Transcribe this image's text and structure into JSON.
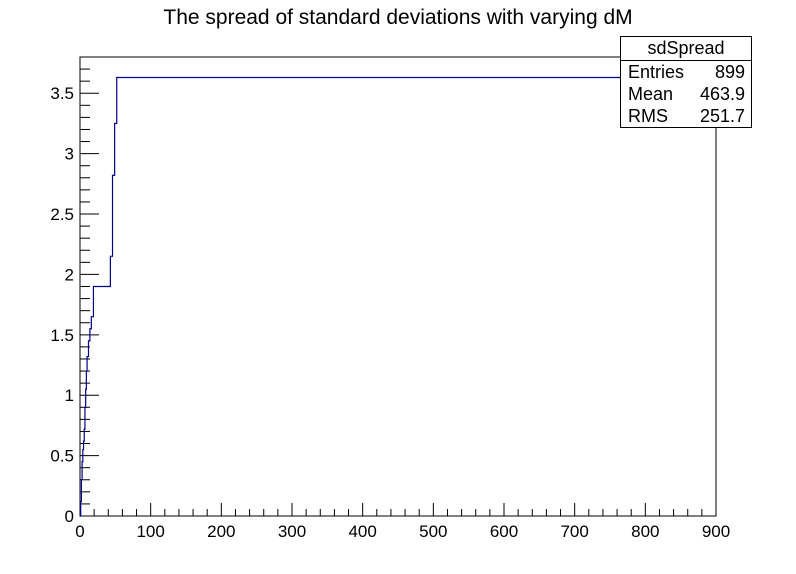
{
  "chart_data": {
    "type": "line",
    "title": "The spread of standard deviations with varying dM",
    "xlabel": "",
    "ylabel": "",
    "xlim": [
      0,
      900
    ],
    "ylim": [
      0,
      3.8
    ],
    "x_ticks": [
      0,
      100,
      200,
      300,
      400,
      500,
      600,
      700,
      800,
      900
    ],
    "x_tick_labels": [
      "0",
      "100",
      "200",
      "300",
      "400",
      "500",
      "600",
      "700",
      "800",
      "900"
    ],
    "y_ticks": [
      0,
      0.5,
      1,
      1.5,
      2,
      2.5,
      3,
      3.5
    ],
    "y_tick_labels": [
      "0",
      "0.5",
      "1",
      "1.5",
      "2",
      "2.5",
      "3",
      "3.5"
    ],
    "grid": false,
    "line_color": "#00008b",
    "series": [
      {
        "step": true,
        "points": [
          [
            0,
            0
          ],
          [
            1,
            0.12
          ],
          [
            2,
            0.3
          ],
          [
            3,
            0.45
          ],
          [
            4,
            0.55
          ],
          [
            5,
            0.62
          ],
          [
            6,
            0.72
          ],
          [
            7,
            0.9
          ],
          [
            8,
            1.05
          ],
          [
            9,
            1.2
          ],
          [
            10,
            1.32
          ],
          [
            12,
            1.45
          ],
          [
            14,
            1.55
          ],
          [
            16,
            1.65
          ],
          [
            19,
            1.9
          ],
          [
            43,
            2.15
          ],
          [
            46,
            2.82
          ],
          [
            49,
            3.25
          ],
          [
            52,
            3.63
          ],
          [
            900,
            3.63
          ]
        ]
      }
    ],
    "stats_box": {
      "title": "sdSpread",
      "rows": [
        {
          "label": "Entries",
          "value": "899"
        },
        {
          "label": "Mean",
          "value": "463.9"
        },
        {
          "label": "RMS",
          "value": "251.7"
        }
      ]
    }
  }
}
